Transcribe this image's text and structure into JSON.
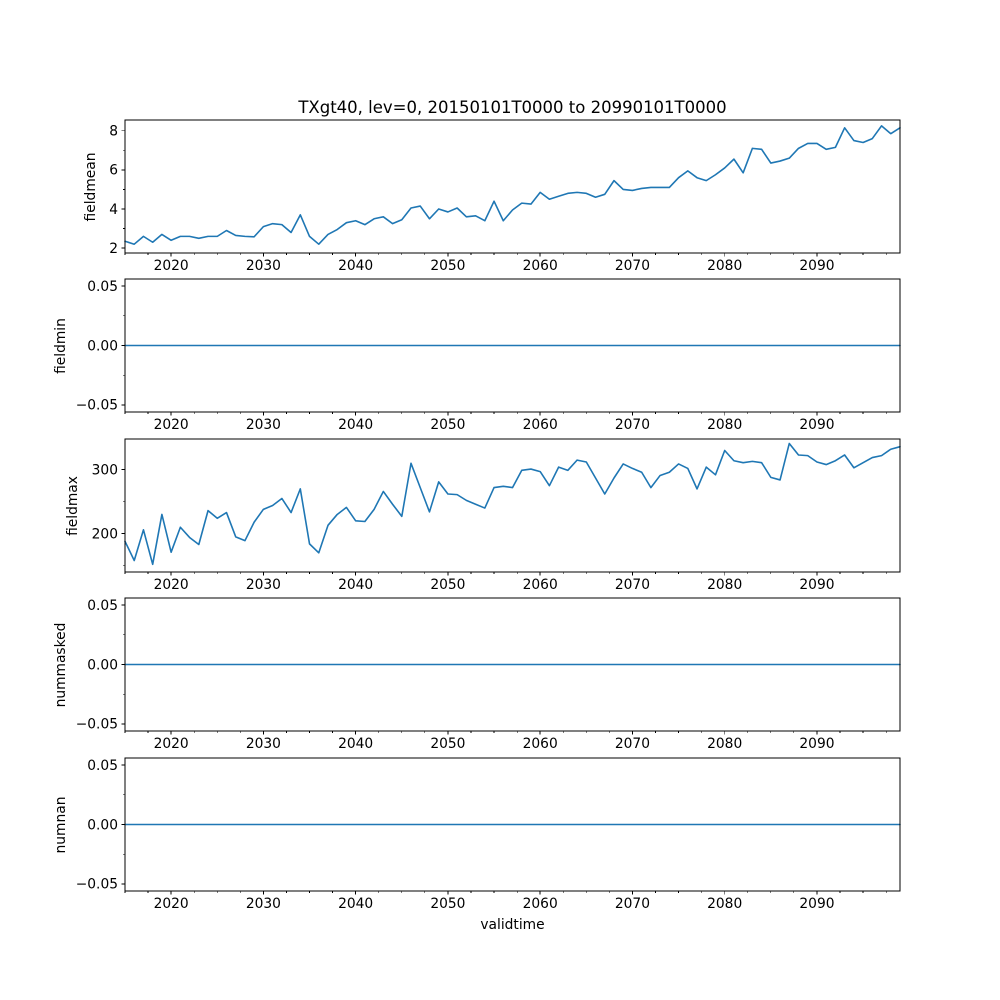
{
  "figure": {
    "title": "TXgt40, lev=0, 20150101T0000 to 20990101T0000",
    "xlabel": "validtime",
    "line_color": "#1f77b4",
    "background": "#ffffff"
  },
  "chart_data": {
    "type": "line",
    "title": "TXgt40, lev=0, 20150101T0000 to 20990101T0000",
    "xlabel": "validtime",
    "grid": false,
    "legend": "none",
    "line_color": "#1f77b4",
    "xlim": [
      2015,
      2099
    ],
    "xticks": [
      2020,
      2030,
      2040,
      2050,
      2060,
      2070,
      2080,
      2090
    ],
    "xtick_labels": [
      "2020",
      "2030",
      "2040",
      "2050",
      "2060",
      "2070",
      "2080",
      "2090"
    ],
    "xminorticks": [
      2015,
      2017.5,
      2022.5,
      2025,
      2027.5,
      2032.5,
      2035,
      2037.5,
      2042.5,
      2045,
      2047.5,
      2052.5,
      2055,
      2057.5,
      2062.5,
      2065,
      2067.5,
      2072.5,
      2075,
      2077.5,
      2082.5,
      2085,
      2087.5,
      2092.5,
      2095,
      2097.5
    ],
    "x": [
      2015,
      2016,
      2017,
      2018,
      2019,
      2020,
      2021,
      2022,
      2023,
      2024,
      2025,
      2026,
      2027,
      2028,
      2029,
      2030,
      2031,
      2032,
      2033,
      2034,
      2035,
      2036,
      2037,
      2038,
      2039,
      2040,
      2041,
      2042,
      2043,
      2044,
      2045,
      2046,
      2047,
      2048,
      2049,
      2050,
      2051,
      2052,
      2053,
      2054,
      2055,
      2056,
      2057,
      2058,
      2059,
      2060,
      2061,
      2062,
      2063,
      2064,
      2065,
      2066,
      2067,
      2068,
      2069,
      2070,
      2071,
      2072,
      2073,
      2074,
      2075,
      2076,
      2077,
      2078,
      2079,
      2080,
      2081,
      2082,
      2083,
      2084,
      2085,
      2086,
      2087,
      2088,
      2089,
      2090,
      2091,
      2092,
      2093,
      2094,
      2095,
      2096,
      2097,
      2098,
      2099
    ],
    "panels": [
      {
        "ylabel": "fieldmean",
        "ylim": [
          1.75,
          8.55
        ],
        "yticks": [
          {
            "value": 2,
            "label": "2"
          },
          {
            "value": 4,
            "label": "4"
          },
          {
            "value": 6,
            "label": "6"
          },
          {
            "value": 8,
            "label": "8"
          }
        ],
        "yminorticks": [
          3,
          5,
          7
        ],
        "values": [
          2.35,
          2.2,
          2.6,
          2.3,
          2.7,
          2.4,
          2.6,
          2.6,
          2.5,
          2.6,
          2.6,
          2.9,
          2.65,
          2.6,
          2.58,
          3.1,
          3.25,
          3.2,
          2.8,
          3.7,
          2.6,
          2.2,
          2.7,
          2.95,
          3.3,
          3.4,
          3.2,
          3.5,
          3.6,
          3.25,
          3.45,
          4.05,
          4.15,
          3.5,
          4.0,
          3.85,
          4.05,
          3.6,
          3.65,
          3.4,
          4.4,
          3.4,
          3.95,
          4.3,
          4.25,
          4.85,
          4.5,
          4.65,
          4.8,
          4.85,
          4.8,
          4.6,
          4.75,
          5.45,
          5.0,
          4.95,
          5.05,
          5.1,
          5.1,
          5.1,
          5.6,
          5.95,
          5.6,
          5.45,
          5.75,
          6.1,
          6.55,
          5.85,
          7.1,
          7.05,
          6.35,
          6.45,
          6.6,
          7.1,
          7.35,
          7.35,
          7.05,
          7.15,
          8.15,
          7.5,
          7.4,
          7.6,
          8.25,
          7.85,
          8.15
        ]
      },
      {
        "ylabel": "fieldmin",
        "ylim": [
          -0.056,
          0.056
        ],
        "yticks": [
          {
            "value": 0.05,
            "label": "0.05"
          },
          {
            "value": 0,
            "label": "0.00"
          },
          {
            "value": -0.05,
            "label": "−0.05"
          }
        ],
        "yminorticks": [
          0.025,
          -0.025
        ],
        "constant": 0
      },
      {
        "ylabel": "fieldmax",
        "ylim": [
          140,
          348
        ],
        "yticks": [
          {
            "value": 200,
            "label": "200"
          },
          {
            "value": 300,
            "label": "300"
          }
        ],
        "yminorticks": [
          150,
          250
        ],
        "values": [
          188,
          158,
          206,
          152,
          230,
          171,
          210,
          194,
          183,
          236,
          224,
          233,
          195,
          189,
          218,
          238,
          244,
          255,
          233,
          270,
          184,
          170,
          213,
          230,
          241,
          220,
          219,
          238,
          266,
          246,
          227,
          310,
          272,
          234,
          281,
          262,
          261,
          252,
          246,
          240,
          272,
          274,
          272,
          299,
          301,
          297,
          275,
          304,
          299,
          315,
          312,
          287,
          262,
          287,
          309,
          302,
          296,
          272,
          291,
          296,
          309,
          302,
          270,
          304,
          292,
          330,
          314,
          311,
          313,
          311,
          288,
          284,
          341,
          323,
          322,
          312,
          308,
          314,
          323,
          303,
          311,
          319,
          322,
          332,
          336
        ]
      },
      {
        "ylabel": "nummasked",
        "ylim": [
          -0.056,
          0.056
        ],
        "yticks": [
          {
            "value": 0.05,
            "label": "0.05"
          },
          {
            "value": 0,
            "label": "0.00"
          },
          {
            "value": -0.05,
            "label": "−0.05"
          }
        ],
        "yminorticks": [
          0.025,
          -0.025
        ],
        "constant": 0
      },
      {
        "ylabel": "numnan",
        "ylim": [
          -0.056,
          0.056
        ],
        "yticks": [
          {
            "value": 0.05,
            "label": "0.05"
          },
          {
            "value": 0,
            "label": "0.00"
          },
          {
            "value": -0.05,
            "label": "−0.05"
          }
        ],
        "yminorticks": [
          0.025,
          -0.025
        ],
        "constant": 0
      }
    ]
  }
}
